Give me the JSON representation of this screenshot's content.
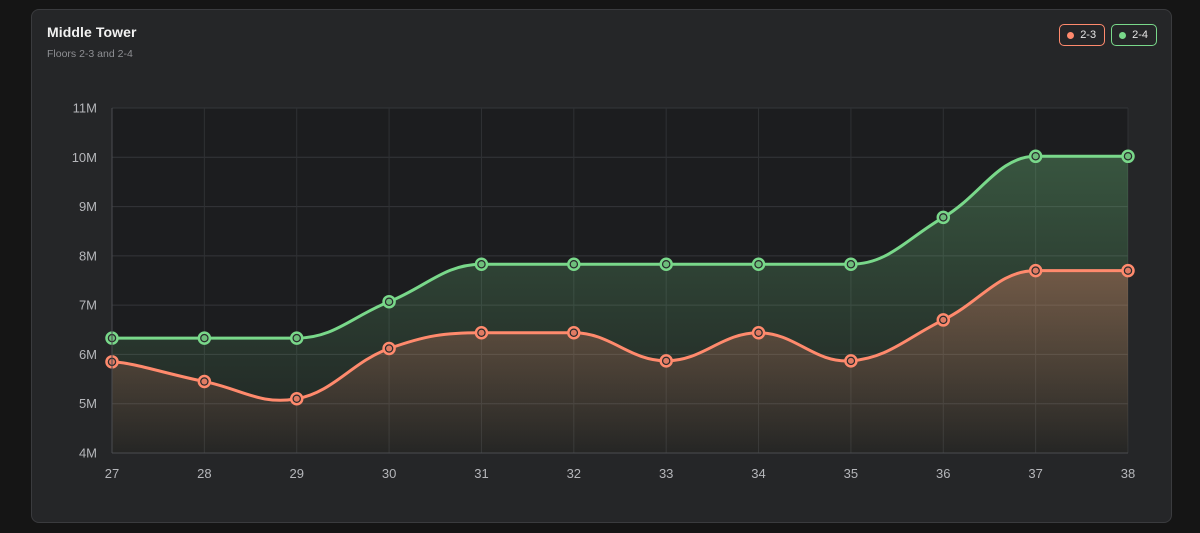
{
  "card": {
    "title": "Middle Tower",
    "subtitle": "Floors 2-3 and 2-4"
  },
  "legend": [
    {
      "label": "2-3",
      "color": "#ff8a6d"
    },
    {
      "label": "2-4",
      "color": "#79d88a"
    }
  ],
  "chart_data": {
    "type": "area",
    "x": [
      27,
      28,
      29,
      30,
      31,
      32,
      33,
      34,
      35,
      36,
      37,
      38
    ],
    "series": [
      {
        "name": "2-3",
        "color": "#ff8a6d",
        "values": [
          5.85,
          5.45,
          5.1,
          6.12,
          6.44,
          6.44,
          5.87,
          6.44,
          5.87,
          6.7,
          7.7,
          7.7
        ]
      },
      {
        "name": "2-4",
        "color": "#79d88a",
        "values": [
          6.33,
          6.33,
          6.33,
          7.07,
          7.83,
          7.83,
          7.83,
          7.83,
          7.83,
          8.78,
          10.02,
          10.02
        ]
      }
    ],
    "yticks": [
      "4M",
      "5M",
      "6M",
      "7M",
      "8M",
      "9M",
      "10M",
      "11M"
    ],
    "ylim": [
      4,
      11
    ],
    "ylabel_unit": "M",
    "xlim": [
      27,
      38
    ],
    "grid": true,
    "legend_position": "top-right"
  }
}
